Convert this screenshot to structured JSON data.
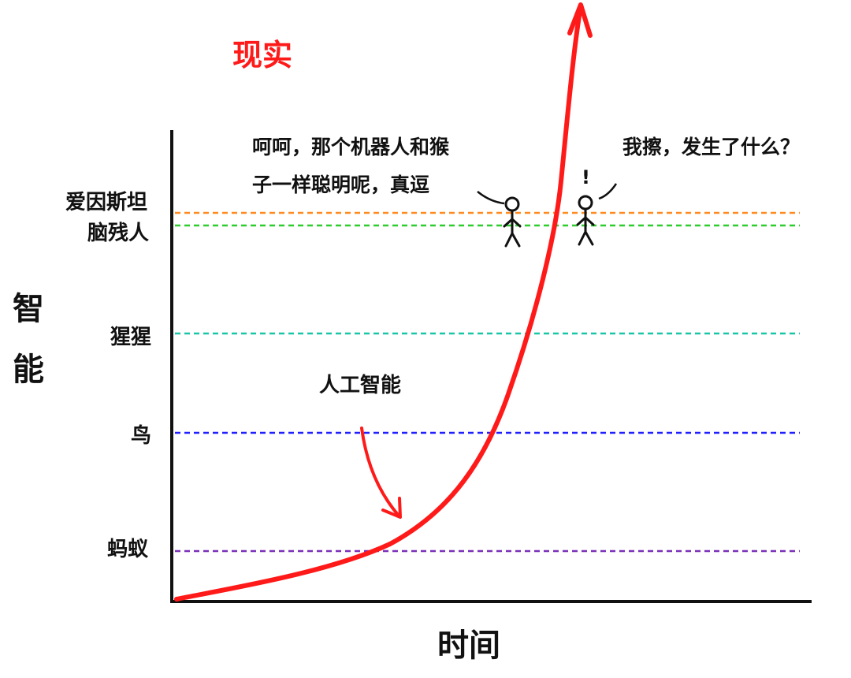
{
  "title": "现实",
  "axes": {
    "y_label": [
      "智",
      "能"
    ],
    "x_label": "时间"
  },
  "levels": [
    {
      "label_lines": [
        "爱因斯坦"
      ],
      "color": "#ff8a1f"
    },
    {
      "label_lines": [
        "脑残人"
      ],
      "color": "#2ecc2e"
    },
    {
      "label_lines": [
        "猩猩"
      ],
      "color": "#18c7a8"
    },
    {
      "label_lines": [
        "鸟"
      ],
      "color": "#2020ff"
    },
    {
      "label_lines": [
        "蚂蚁"
      ],
      "color": "#7a2fb8"
    }
  ],
  "curve": {
    "label": "人工智能",
    "color": "#ff1a1a"
  },
  "speech": {
    "left_lines": [
      "呵呵，那个机器人和猴",
      "子一样聪明呢，真逗"
    ],
    "right_line": "我擦，发生了什么？",
    "exclaim": "!"
  },
  "colors": {
    "axis": "#111111",
    "title": "#ff1a1a"
  }
}
